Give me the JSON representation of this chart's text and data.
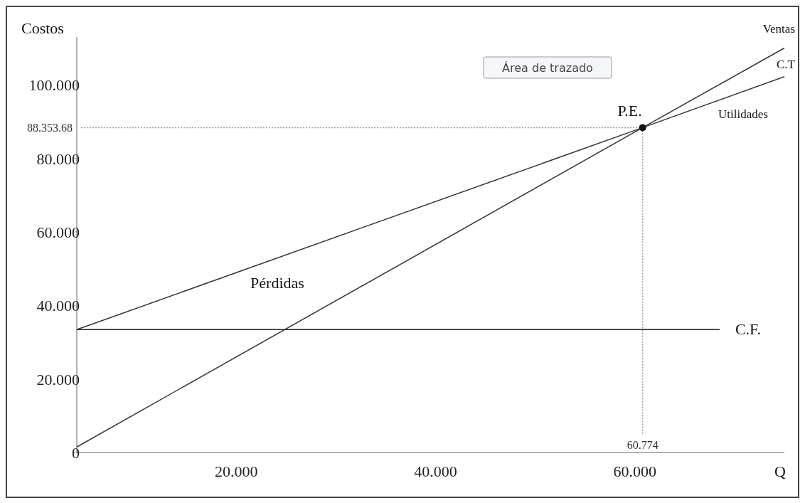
{
  "chart_data": {
    "type": "line",
    "xlabel": "Q",
    "ylabel": "Costos",
    "xlim": [
      4000,
      75000
    ],
    "xticks": [
      {
        "value": 20000,
        "label": "20.000"
      },
      {
        "value": 40000,
        "label": "40.000"
      },
      {
        "value": 60000,
        "label": "60.000"
      }
    ],
    "ylim": [
      0,
      113000
    ],
    "yticks": [
      0,
      {
        "value": 20000,
        "label": "20.000"
      },
      {
        "value": 40000,
        "label": "40.000"
      },
      {
        "value": 60000,
        "label": "60.000"
      },
      {
        "value": 80000,
        "label": "80.000"
      },
      {
        "value": 100000,
        "label": "100.000"
      }
    ],
    "series": [
      {
        "name": "Ventas",
        "color": "#333333",
        "x": [
          4000,
          60774,
          75000
        ],
        "values": [
          1500,
          88353.68,
          110000
        ]
      },
      {
        "name": "C.T",
        "color": "#333333",
        "x": [
          4000,
          60774,
          75000
        ],
        "values": [
          33425.99,
          88353.68,
          102200
        ]
      },
      {
        "name": "C.F.",
        "color": "#222222",
        "x": [
          4000,
          68500
        ],
        "values": [
          33425.99,
          33425.99
        ]
      },
      {
        "name": "P.E.",
        "type": "scatter",
        "marker": "circle",
        "color": "#111111",
        "x": [
          60774
        ],
        "values": [
          88353.68
        ]
      }
    ],
    "grid": false,
    "ref_lines": [
      {
        "axis": "y",
        "value": 88353.68,
        "label": "88.353.68",
        "color": "#999999",
        "line_style": "dotted"
      },
      {
        "axis": "x",
        "value": 60774,
        "label": "60.774",
        "color": "#999999",
        "line_style": "dotted"
      }
    ],
    "annotations": [
      "Utilidades",
      "Pérdidas",
      "Área de trazado"
    ]
  }
}
